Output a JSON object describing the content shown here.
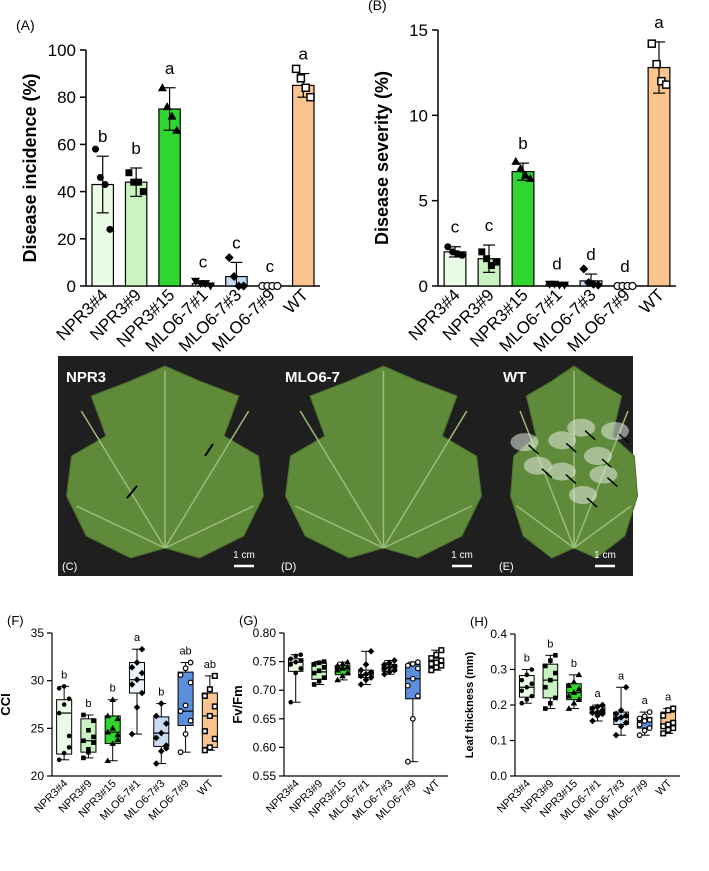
{
  "colors": {
    "npr3_4": "#eafbe6",
    "npr3_9": "#c9f3c0",
    "npr3_15": "#2fd62f",
    "mlo_1": "#eef3fb",
    "mlo_3": "#c9dbf3",
    "mlo_9": "#5b8fdc",
    "wt": "#f9c48d",
    "photo_bg": "#1f1f1f",
    "leaf": "#5e8a3a"
  },
  "chart_data": [
    {
      "type": "bar",
      "panel": "(A)",
      "ylabel": "Disease incidence (%)",
      "ylim": [
        0,
        100
      ],
      "yticks": [
        0,
        20,
        40,
        60,
        80,
        100
      ],
      "categories": [
        "NPR3#4",
        "NPR3#9",
        "NPR3#15",
        "MLO6-7#1",
        "MLO6-7#3",
        "MLO6-7#9",
        "WT"
      ],
      "values": [
        43,
        44,
        75,
        1,
        4,
        0,
        85
      ],
      "errors": [
        12,
        6,
        9,
        1,
        6,
        0,
        5
      ],
      "letters": [
        "b",
        "b",
        "a",
        "c",
        "c",
        "c",
        "a"
      ],
      "points": [
        [
          58,
          46,
          43,
          24
        ],
        [
          48,
          44,
          44,
          40
        ],
        [
          84,
          76,
          72,
          66
        ],
        [
          2,
          1,
          1,
          0
        ],
        [
          12,
          4,
          0,
          0
        ],
        [
          0,
          0,
          0,
          0
        ],
        [
          92,
          88,
          84,
          80
        ]
      ],
      "markers": [
        "circle",
        "square",
        "triangle",
        "triangle-down",
        "diamond",
        "circle-open",
        "square-open"
      ]
    },
    {
      "type": "bar",
      "panel": "(B)",
      "ylabel": "Disease severity (%)",
      "ylim": [
        0,
        15
      ],
      "yticks": [
        0,
        5,
        10,
        15
      ],
      "categories": [
        "NPR3#4",
        "NPR3#9",
        "NPR3#15",
        "MLO6-7#1",
        "MLO6-7#3",
        "MLO6-7#9",
        "WT"
      ],
      "values": [
        2.0,
        1.6,
        6.7,
        0.1,
        0.3,
        0.0,
        12.8
      ],
      "errors": [
        0.3,
        0.8,
        0.5,
        0.05,
        0.4,
        0.0,
        1.5
      ],
      "letters": [
        "c",
        "c",
        "b",
        "d",
        "d",
        "d",
        "a"
      ],
      "points": [
        [
          2.3,
          2.0,
          1.9,
          1.8
        ],
        [
          2.0,
          1.6,
          1.2,
          1.4
        ],
        [
          7.3,
          6.9,
          6.5,
          6.3
        ],
        [
          0.1,
          0.1,
          0.05,
          0.05
        ],
        [
          1.0,
          0.2,
          0.1,
          0.05
        ],
        [
          0,
          0,
          0,
          0
        ],
        [
          14.2,
          13.0,
          12.0,
          11.8
        ]
      ],
      "markers": [
        "circle",
        "square",
        "triangle",
        "triangle-down",
        "diamond",
        "circle-open",
        "square-open"
      ]
    },
    {
      "type": "box",
      "panel": "(F)",
      "ylabel": "CCI",
      "ylim": [
        20,
        35
      ],
      "yticks": [
        20,
        25,
        30,
        35
      ],
      "categories": [
        "NPR3#4",
        "NPR3#9",
        "NPR3#15",
        "MLO6-7#1",
        "MLO6-7#3",
        "MLO6-7#9",
        "WT"
      ],
      "boxes": [
        {
          "min": 21.7,
          "q1": 22.3,
          "median": 26.6,
          "q3": 28.0,
          "max": 29.4
        },
        {
          "min": 21.9,
          "q1": 22.5,
          "median": 23.7,
          "q3": 26.0,
          "max": 26.4
        },
        {
          "min": 21.6,
          "q1": 23.4,
          "median": 24.6,
          "q3": 26.3,
          "max": 28.0
        },
        {
          "min": 24.4,
          "q1": 28.7,
          "median": 30.1,
          "q3": 31.9,
          "max": 33.3
        },
        {
          "min": 21.3,
          "q1": 23.1,
          "median": 24.5,
          "q3": 26.2,
          "max": 27.6
        },
        {
          "min": 22.5,
          "q1": 25.3,
          "median": 26.8,
          "q3": 30.9,
          "max": 31.9
        },
        {
          "min": 22.7,
          "q1": 23.0,
          "median": 26.3,
          "q3": 28.7,
          "max": 30.5
        }
      ],
      "points": [
        [
          21.7,
          22.4,
          24.2,
          26.6,
          27.5,
          28.1,
          29.2,
          29.4,
          23.0
        ],
        [
          21.9,
          22.5,
          23.5,
          23.7,
          24.8,
          25.8,
          26.4,
          22.8,
          24.1
        ],
        [
          21.6,
          23.4,
          24.3,
          24.6,
          25.0,
          26.0,
          26.3,
          28.0,
          23.8
        ],
        [
          24.4,
          27.2,
          28.7,
          29.6,
          30.1,
          30.8,
          31.4,
          31.9,
          33.3
        ],
        [
          21.3,
          22.6,
          23.2,
          24.0,
          24.5,
          25.5,
          26.3,
          27.6,
          22.9
        ],
        [
          22.5,
          24.4,
          25.8,
          26.8,
          27.4,
          29.8,
          30.6,
          31.3,
          31.9
        ],
        [
          22.7,
          23.0,
          23.9,
          24.7,
          26.3,
          27.3,
          28.4,
          29.1,
          30.5
        ]
      ],
      "letters": [
        "b",
        "b",
        "b",
        "a",
        "b",
        "ab",
        "ab"
      ]
    },
    {
      "type": "box",
      "panel": "(G)",
      "ylabel": "Fv/Fm",
      "ylim": [
        0.55,
        0.8
      ],
      "yticks": [
        0.55,
        0.6,
        0.65,
        0.7,
        0.75,
        0.8
      ],
      "categories": [
        "NPR3#4",
        "NPR3#9",
        "NPR3#15",
        "MLO6-7#1",
        "MLO6-7#3",
        "MLO6-7#9",
        "WT"
      ],
      "boxes": [
        {
          "min": 0.679,
          "q1": 0.733,
          "median": 0.749,
          "q3": 0.755,
          "max": 0.762
        },
        {
          "min": 0.71,
          "q1": 0.719,
          "median": 0.732,
          "q3": 0.748,
          "max": 0.75
        },
        {
          "min": 0.718,
          "q1": 0.727,
          "median": 0.738,
          "q3": 0.743,
          "max": 0.749
        },
        {
          "min": 0.71,
          "q1": 0.722,
          "median": 0.727,
          "q3": 0.735,
          "max": 0.768
        },
        {
          "min": 0.728,
          "q1": 0.733,
          "median": 0.74,
          "q3": 0.745,
          "max": 0.752
        },
        {
          "min": 0.575,
          "q1": 0.685,
          "median": 0.72,
          "q3": 0.745,
          "max": 0.749
        },
        {
          "min": 0.735,
          "q1": 0.74,
          "median": 0.748,
          "q3": 0.756,
          "max": 0.77
        }
      ],
      "points": [
        [
          0.679,
          0.73,
          0.738,
          0.745,
          0.749,
          0.752,
          0.755,
          0.76,
          0.762
        ],
        [
          0.71,
          0.716,
          0.722,
          0.73,
          0.734,
          0.74,
          0.745,
          0.748,
          0.75
        ],
        [
          0.718,
          0.725,
          0.73,
          0.735,
          0.738,
          0.74,
          0.743,
          0.746,
          0.749
        ],
        [
          0.71,
          0.718,
          0.722,
          0.725,
          0.728,
          0.731,
          0.735,
          0.745,
          0.768
        ],
        [
          0.728,
          0.732,
          0.735,
          0.738,
          0.74,
          0.742,
          0.745,
          0.748,
          0.752
        ],
        [
          0.575,
          0.65,
          0.69,
          0.708,
          0.72,
          0.738,
          0.743,
          0.746,
          0.749
        ],
        [
          0.735,
          0.74,
          0.743,
          0.746,
          0.748,
          0.752,
          0.756,
          0.762,
          0.77
        ]
      ],
      "letters": []
    },
    {
      "type": "box",
      "panel": "(H)",
      "ylabel": "Leaf thickness (mm)",
      "ylim": [
        0,
        0.4
      ],
      "yticks": [
        0.0,
        0.1,
        0.2,
        0.3,
        0.4
      ],
      "categories": [
        "NPR3#4",
        "NPR3#9",
        "NPR3#15",
        "MLO6-7#1",
        "MLO6-7#3",
        "MLO6-7#9",
        "WT"
      ],
      "boxes": [
        {
          "min": 0.205,
          "q1": 0.222,
          "median": 0.25,
          "q3": 0.283,
          "max": 0.3
        },
        {
          "min": 0.19,
          "q1": 0.22,
          "median": 0.27,
          "q3": 0.315,
          "max": 0.34
        },
        {
          "min": 0.19,
          "q1": 0.215,
          "median": 0.235,
          "q3": 0.26,
          "max": 0.285
        },
        {
          "min": 0.155,
          "q1": 0.175,
          "median": 0.18,
          "q3": 0.195,
          "max": 0.2
        },
        {
          "min": 0.115,
          "q1": 0.145,
          "median": 0.165,
          "q3": 0.18,
          "max": 0.25
        },
        {
          "min": 0.115,
          "q1": 0.135,
          "median": 0.155,
          "q3": 0.165,
          "max": 0.18
        },
        {
          "min": 0.12,
          "q1": 0.135,
          "median": 0.145,
          "q3": 0.18,
          "max": 0.19
        }
      ],
      "points": [
        [
          0.205,
          0.215,
          0.225,
          0.24,
          0.25,
          0.26,
          0.27,
          0.285,
          0.3
        ],
        [
          0.19,
          0.205,
          0.22,
          0.25,
          0.27,
          0.29,
          0.31,
          0.325,
          0.34
        ],
        [
          0.19,
          0.205,
          0.215,
          0.225,
          0.235,
          0.245,
          0.255,
          0.265,
          0.285
        ],
        [
          0.155,
          0.17,
          0.175,
          0.178,
          0.18,
          0.185,
          0.19,
          0.195,
          0.2
        ],
        [
          0.115,
          0.14,
          0.15,
          0.16,
          0.165,
          0.17,
          0.175,
          0.185,
          0.25
        ],
        [
          0.115,
          0.128,
          0.135,
          0.145,
          0.155,
          0.158,
          0.162,
          0.168,
          0.18
        ],
        [
          0.12,
          0.13,
          0.135,
          0.14,
          0.145,
          0.15,
          0.17,
          0.185,
          0.19
        ]
      ],
      "letters": [
        "b",
        "b",
        "b",
        "a",
        "a",
        "a",
        "a"
      ]
    }
  ],
  "photo": {
    "panels": [
      {
        "name": "NPR3",
        "letter": "(C)",
        "scale": "1 cm"
      },
      {
        "name": "MLO6-7",
        "letter": "(D)",
        "scale": "1 cm"
      },
      {
        "name": "WT",
        "letter": "(E)",
        "scale": "1 cm"
      }
    ]
  }
}
